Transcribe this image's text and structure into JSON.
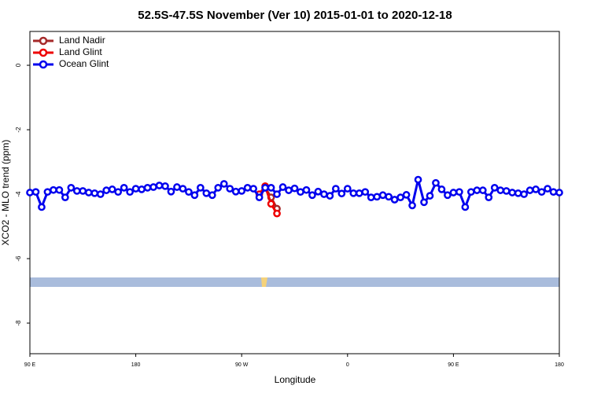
{
  "chart_data": {
    "type": "line",
    "title": "52.5S-47.5S November (Ver 10)   2015-01-01 to 2020-12-18",
    "xlabel": "Longitude",
    "ylabel": "XCO2 - MLO trend (ppm)",
    "xlim": [
      90,
      540
    ],
    "ylim": [
      -8.95,
      1.05
    ],
    "xticks": [
      {
        "value": 90,
        "label": "90 E"
      },
      180,
      {
        "value": 270,
        "label": "90 W"
      },
      {
        "value": 360,
        "label": "0"
      },
      {
        "value": 450,
        "label": "90 E"
      },
      {
        "value": 540,
        "label": "180"
      }
    ],
    "yticks": [
      0,
      -2,
      -4,
      -6,
      -8
    ],
    "legend": "top-left",
    "series": [
      {
        "name": "Land Nadir",
        "color": "#a52a2a",
        "x": [
          290,
          295,
          300
        ],
        "values": [
          -3.8,
          -4.1,
          -4.45
        ]
      },
      {
        "name": "Land Glint",
        "color": "#ee0000",
        "x": [
          285,
          290,
          295,
          300
        ],
        "values": [
          -4.0,
          -3.75,
          -4.3,
          -4.6
        ]
      },
      {
        "name": "Ocean Glint",
        "color": "#0000ee",
        "x": [
          90,
          95,
          100,
          105,
          110,
          115,
          120,
          125,
          130,
          135,
          140,
          145,
          150,
          155,
          160,
          165,
          170,
          175,
          180,
          185,
          190,
          195,
          200,
          205,
          210,
          215,
          220,
          225,
          230,
          235,
          240,
          245,
          250,
          255,
          260,
          265,
          270,
          275,
          280,
          285,
          290,
          295,
          300,
          305,
          310,
          315,
          320,
          325,
          330,
          335,
          340,
          345,
          350,
          355,
          360,
          365,
          370,
          375,
          380,
          385,
          390,
          395,
          400,
          405,
          410,
          415,
          420,
          425,
          430,
          435,
          440,
          445,
          450,
          455,
          460,
          465,
          470,
          475,
          480,
          485,
          490,
          495,
          500,
          505,
          510,
          515,
          520,
          525,
          530,
          535,
          540
        ],
        "values": [
          -3.95,
          -3.93,
          -4.4,
          -3.93,
          -3.87,
          -3.87,
          -4.1,
          -3.8,
          -3.9,
          -3.9,
          -3.95,
          -3.97,
          -4.0,
          -3.88,
          -3.85,
          -3.93,
          -3.8,
          -3.93,
          -3.83,
          -3.85,
          -3.8,
          -3.78,
          -3.73,
          -3.75,
          -3.92,
          -3.78,
          -3.83,
          -3.93,
          -4.03,
          -3.8,
          -3.97,
          -4.03,
          -3.8,
          -3.68,
          -3.83,
          -3.92,
          -3.9,
          -3.8,
          -3.83,
          -4.1,
          -3.8,
          -3.8,
          -4.0,
          -3.78,
          -3.88,
          -3.82,
          -3.93,
          -3.87,
          -4.03,
          -3.92,
          -4.0,
          -4.05,
          -3.83,
          -3.98,
          -3.83,
          -3.97,
          -3.97,
          -3.93,
          -4.1,
          -4.08,
          -4.03,
          -4.08,
          -4.17,
          -4.1,
          -4.02,
          -4.35,
          -3.55,
          -4.25,
          -4.05,
          -3.65,
          -3.85,
          -4.03,
          -3.95,
          -3.93,
          -4.4,
          -3.93,
          -3.88,
          -3.88,
          -4.1,
          -3.8,
          -3.88,
          -3.9,
          -3.95,
          -3.97,
          -4.0,
          -3.88,
          -3.85,
          -3.93,
          -3.83,
          -3.93,
          -3.95
        ]
      }
    ]
  }
}
